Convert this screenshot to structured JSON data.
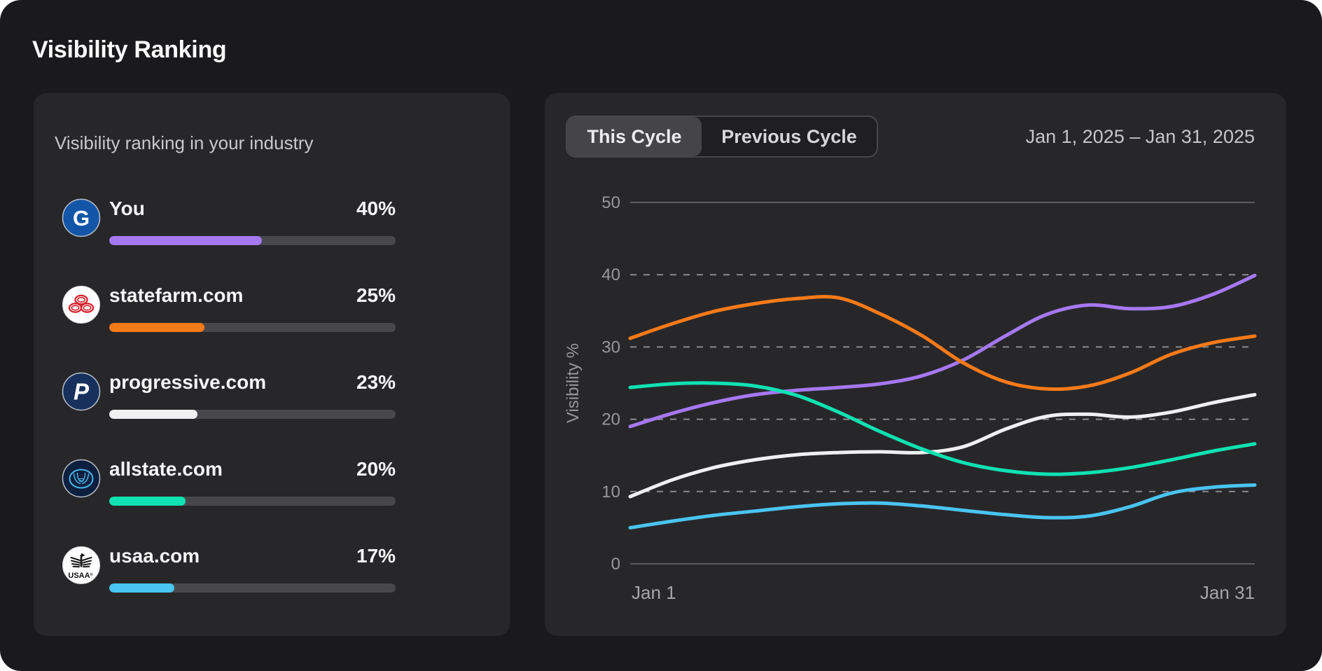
{
  "page": {
    "title": "Visibility Ranking"
  },
  "colors": {
    "background": "#1a1a1c",
    "card": "#27272a",
    "bar_track": "#48484c",
    "accent_purple": "#a678f0",
    "accent_orange": "#f57a18",
    "accent_teal": "#10e2b2",
    "accent_blue": "#4ac4f0",
    "accent_white": "#f0f0f0"
  },
  "ranking_card": {
    "heading": "Visibility ranking in your industry",
    "bar_scale_max": 75,
    "items": [
      {
        "name": "You",
        "value": 40,
        "value_label": "40%",
        "color": "#a678f0",
        "logo": {
          "type": "geico",
          "letter": "G"
        }
      },
      {
        "name": "statefarm.com",
        "value": 25,
        "value_label": "25%",
        "color": "#f57a18",
        "logo": {
          "type": "statefarm"
        }
      },
      {
        "name": "progressive.com",
        "value": 23,
        "value_label": "23%",
        "color": "#f0f0f0",
        "logo": {
          "type": "progressive",
          "letter": "P"
        }
      },
      {
        "name": "allstate.com",
        "value": 20,
        "value_label": "20%",
        "color": "#10e2b2",
        "logo": {
          "type": "allstate"
        }
      },
      {
        "name": "usaa.com",
        "value": 17,
        "value_label": "17%",
        "color": "#4ac4f0",
        "logo": {
          "type": "usaa",
          "text": "USAA",
          "reg_mark": "®"
        }
      }
    ]
  },
  "chart_card": {
    "tabs": [
      {
        "label": "This Cycle",
        "active": true
      },
      {
        "label": "Previous Cycle",
        "active": false
      }
    ],
    "date_range": "Jan 1, 2025 – Jan 31, 2025"
  },
  "chart_data": {
    "type": "line",
    "title": "",
    "xlabel": "",
    "ylabel": "Visibility %",
    "x_axis": {
      "unit": "day of January 2025",
      "min": 0,
      "max": 30,
      "tick_labels": [
        "Jan 1",
        "Jan 31"
      ]
    },
    "y_axis": {
      "min": 0,
      "max": 50,
      "ticks": [
        0,
        10,
        20,
        30,
        40,
        50
      ]
    },
    "grid": {
      "solid_at": [
        0,
        50
      ],
      "dashed_at": [
        10,
        20,
        30,
        40
      ]
    },
    "legend": "none",
    "x_days": [
      0,
      2,
      4,
      6,
      8,
      10,
      12,
      14,
      16,
      18,
      20,
      22,
      24,
      26,
      28,
      30
    ],
    "series": [
      {
        "name": "You",
        "color": "#a678f0",
        "values": [
          19,
          20.8,
          22.3,
          23.4,
          24,
          24.4,
          24.9,
          26,
          28.2,
          31.5,
          34.5,
          35.8,
          35.3,
          35.6,
          37.3,
          39.9
        ]
      },
      {
        "name": "statefarm.com",
        "color": "#f57a18",
        "values": [
          31.2,
          33.2,
          34.9,
          36,
          36.7,
          36.8,
          34.6,
          31.6,
          27.8,
          25.2,
          24.2,
          24.6,
          26.4,
          29,
          30.6,
          31.5
        ]
      },
      {
        "name": "progressive.com",
        "color": "#f0f0f0",
        "values": [
          9.3,
          11.6,
          13.3,
          14.4,
          15.1,
          15.4,
          15.5,
          15.4,
          16.2,
          18.6,
          20.4,
          20.7,
          20.3,
          21,
          22.3,
          23.4
        ]
      },
      {
        "name": "allstate.com",
        "color": "#10e2b2",
        "values": [
          24.4,
          24.9,
          25,
          24.6,
          23.3,
          21,
          18.3,
          15.9,
          14,
          12.9,
          12.4,
          12.6,
          13.3,
          14.4,
          15.6,
          16.6
        ]
      },
      {
        "name": "usaa.com",
        "color": "#4ac4f0",
        "values": [
          5,
          5.9,
          6.7,
          7.3,
          7.9,
          8.3,
          8.4,
          8,
          7.4,
          6.8,
          6.4,
          6.6,
          7.9,
          9.8,
          10.6,
          10.9
        ]
      }
    ]
  }
}
